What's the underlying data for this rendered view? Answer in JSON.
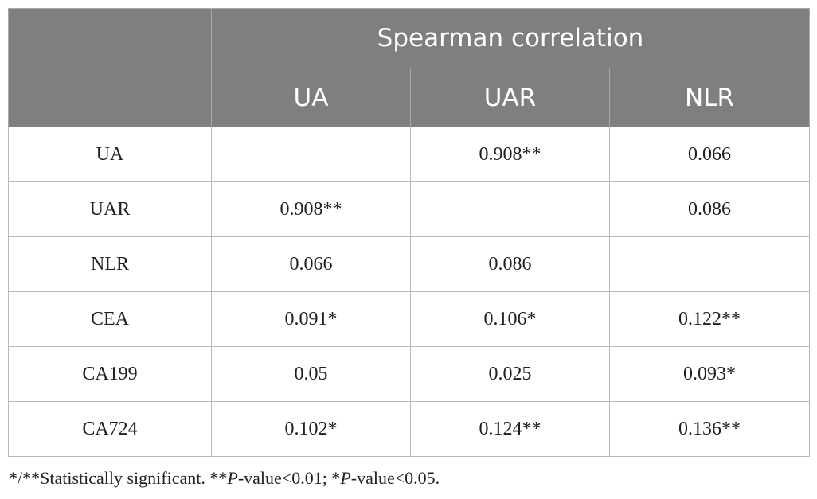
{
  "table": {
    "group_header": "Spearman correlation",
    "columns": [
      "UA",
      "UAR",
      "NLR"
    ],
    "rows": [
      {
        "label": "UA",
        "cells": [
          "",
          "0.908**",
          "0.066"
        ]
      },
      {
        "label": "UAR",
        "cells": [
          "0.908**",
          "",
          "0.086"
        ]
      },
      {
        "label": "NLR",
        "cells": [
          "0.066",
          "0.086",
          ""
        ]
      },
      {
        "label": "CEA",
        "cells": [
          "0.091*",
          "0.106*",
          "0.122**"
        ]
      },
      {
        "label": "CA199",
        "cells": [
          "0.05",
          "0.025",
          "0.093*"
        ]
      },
      {
        "label": "CA724",
        "cells": [
          "0.102*",
          "0.124**",
          "0.136**"
        ]
      }
    ]
  },
  "footnote": {
    "part1": "*/**Statistically significant. **",
    "p1": "P",
    "part2": "-value<0.01; *",
    "p2": "P",
    "part3": "-value<0.05."
  }
}
